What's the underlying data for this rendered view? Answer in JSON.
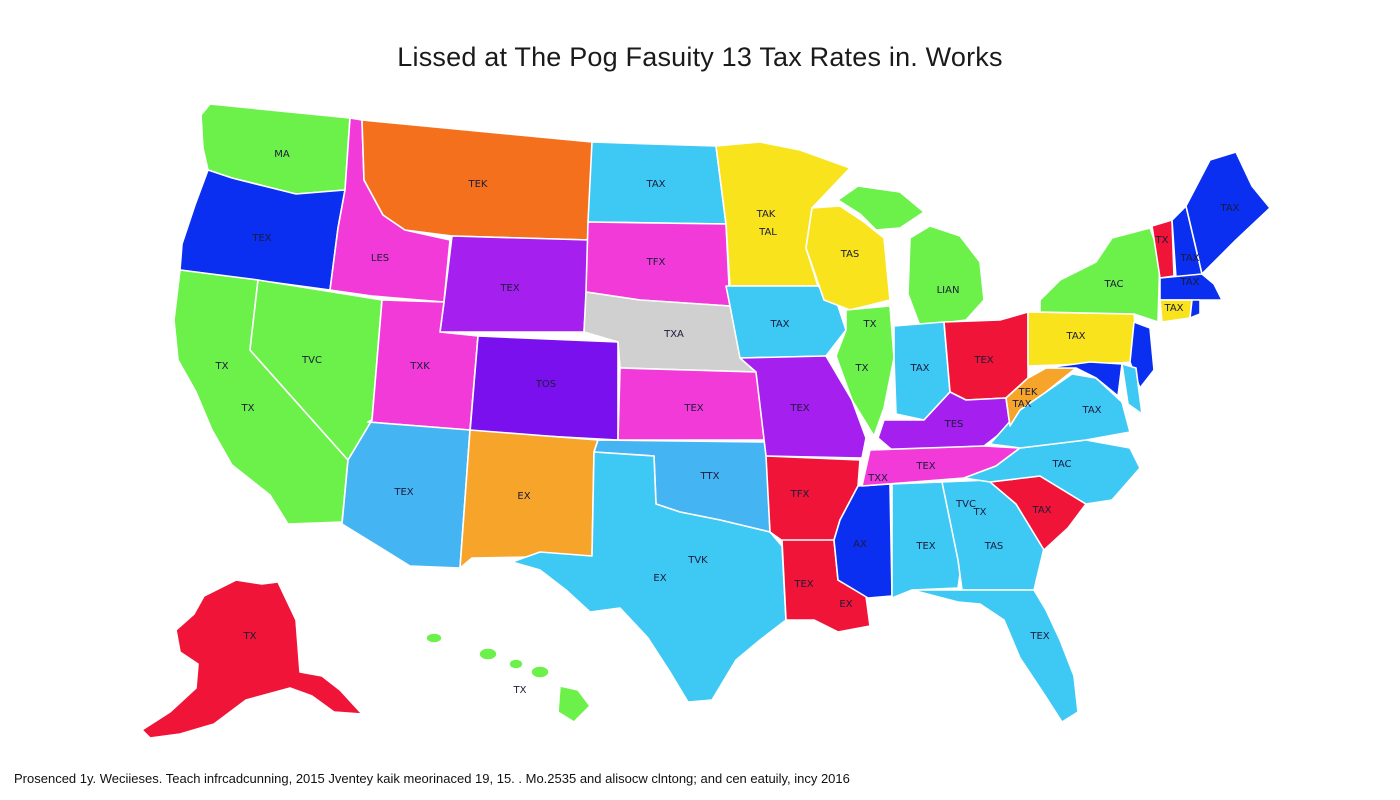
{
  "title": "Lissed at The Pog Fasuity 13 Tax Rates in. Works",
  "footer": "Prosenced 1y. Weciieses. Teach infrcadcunning, 2015 Jventey kaik meorinaced 19, 15. . Mo.2535 and alisocw clntong; and cen eatuily, incy 2016",
  "colors": {
    "green": "#6cf04a",
    "blue": "#0a2ff0",
    "pink": "#f23ad9",
    "orange": "#f4701c",
    "skyblue": "#3ec8f4",
    "yellow": "#f8e31c",
    "purple": "#a51fee",
    "violet": "#7a10ee",
    "gray": "#d0d0d0",
    "red": "#f01438",
    "amber": "#f6a52a",
    "lightblue": "#45b4f2"
  },
  "states": [
    {
      "id": "wa",
      "label": "MA",
      "color": "green"
    },
    {
      "id": "or",
      "label": "TEX",
      "color": "blue"
    },
    {
      "id": "ca",
      "label": "TX",
      "color": "green"
    },
    {
      "id": "ca2",
      "label": "TX",
      "color": "green"
    },
    {
      "id": "nv",
      "label": "TVC",
      "color": "green"
    },
    {
      "id": "id",
      "label": "LES",
      "color": "pink"
    },
    {
      "id": "mt",
      "label": "TEK",
      "color": "orange"
    },
    {
      "id": "wy",
      "label": "TEX",
      "color": "purple"
    },
    {
      "id": "ut",
      "label": "TXK",
      "color": "pink"
    },
    {
      "id": "co",
      "label": "TOS",
      "color": "violet"
    },
    {
      "id": "az",
      "label": "TEX",
      "color": "lightblue"
    },
    {
      "id": "nm",
      "label": "EX",
      "color": "amber"
    },
    {
      "id": "nd",
      "label": "TAX",
      "color": "skyblue"
    },
    {
      "id": "sd",
      "label": "TFX",
      "color": "pink"
    },
    {
      "id": "ne",
      "label": "TXA",
      "color": "gray"
    },
    {
      "id": "ks",
      "label": "TEX",
      "color": "pink"
    },
    {
      "id": "ok",
      "label": "TTX",
      "color": "lightblue"
    },
    {
      "id": "tx",
      "label": "EX",
      "color": "skyblue"
    },
    {
      "id": "tx2",
      "label": "TVK",
      "color": "skyblue"
    },
    {
      "id": "mn",
      "label": "TAK",
      "color": "yellow"
    },
    {
      "id": "mn2",
      "label": "TAL",
      "color": "yellow"
    },
    {
      "id": "ia",
      "label": "TAX",
      "color": "skyblue"
    },
    {
      "id": "mo",
      "label": "TEX",
      "color": "purple"
    },
    {
      "id": "ar",
      "label": "TFX",
      "color": "red"
    },
    {
      "id": "la",
      "label": "TEX",
      "color": "red"
    },
    {
      "id": "la2",
      "label": "EX",
      "color": "red"
    },
    {
      "id": "wi",
      "label": "TAS",
      "color": "yellow"
    },
    {
      "id": "il",
      "label": "TX",
      "color": "green"
    },
    {
      "id": "il2",
      "label": "TX",
      "color": "green"
    },
    {
      "id": "ms",
      "label": "AX",
      "color": "blue"
    },
    {
      "id": "mi",
      "label": "LIAN",
      "color": "green"
    },
    {
      "id": "in",
      "label": "TAX",
      "color": "skyblue"
    },
    {
      "id": "ky",
      "label": "TES",
      "color": "purple"
    },
    {
      "id": "tn",
      "label": "TEX",
      "color": "pink"
    },
    {
      "id": "tn2",
      "label": "TXX",
      "color": "pink"
    },
    {
      "id": "al",
      "label": "TEX",
      "color": "skyblue"
    },
    {
      "id": "ga",
      "label": "TAS",
      "color": "skyblue"
    },
    {
      "id": "fl",
      "label": "TEX",
      "color": "skyblue"
    },
    {
      "id": "sc",
      "label": "TAX",
      "color": "red"
    },
    {
      "id": "nc",
      "label": "TAC",
      "color": "skyblue"
    },
    {
      "id": "nc2",
      "label": "TVC",
      "color": "yellow"
    },
    {
      "id": "nc3",
      "label": "TX",
      "color": "skyblue"
    },
    {
      "id": "va",
      "label": "TAX",
      "color": "skyblue"
    },
    {
      "id": "wv",
      "label": "TEK",
      "color": "amber"
    },
    {
      "id": "wv2",
      "label": "TAX",
      "color": "amber"
    },
    {
      "id": "oh",
      "label": "TEX",
      "color": "red"
    },
    {
      "id": "pa",
      "label": "TAX",
      "color": "yellow"
    },
    {
      "id": "ny",
      "label": "TAC",
      "color": "green"
    },
    {
      "id": "vt",
      "label": "TX",
      "color": "red"
    },
    {
      "id": "nh",
      "label": "TAX",
      "color": "blue"
    },
    {
      "id": "me",
      "label": "TAX",
      "color": "blue"
    },
    {
      "id": "ma",
      "label": "TAX",
      "color": "blue"
    },
    {
      "id": "ct",
      "label": "TAX",
      "color": "yellow"
    },
    {
      "id": "nj",
      "label": "",
      "color": "blue"
    },
    {
      "id": "md",
      "label": "",
      "color": "blue"
    },
    {
      "id": "de",
      "label": "",
      "color": "skyblue"
    },
    {
      "id": "ak",
      "label": "TX",
      "color": "red"
    },
    {
      "id": "hi",
      "label": "TX",
      "color": "green"
    }
  ]
}
